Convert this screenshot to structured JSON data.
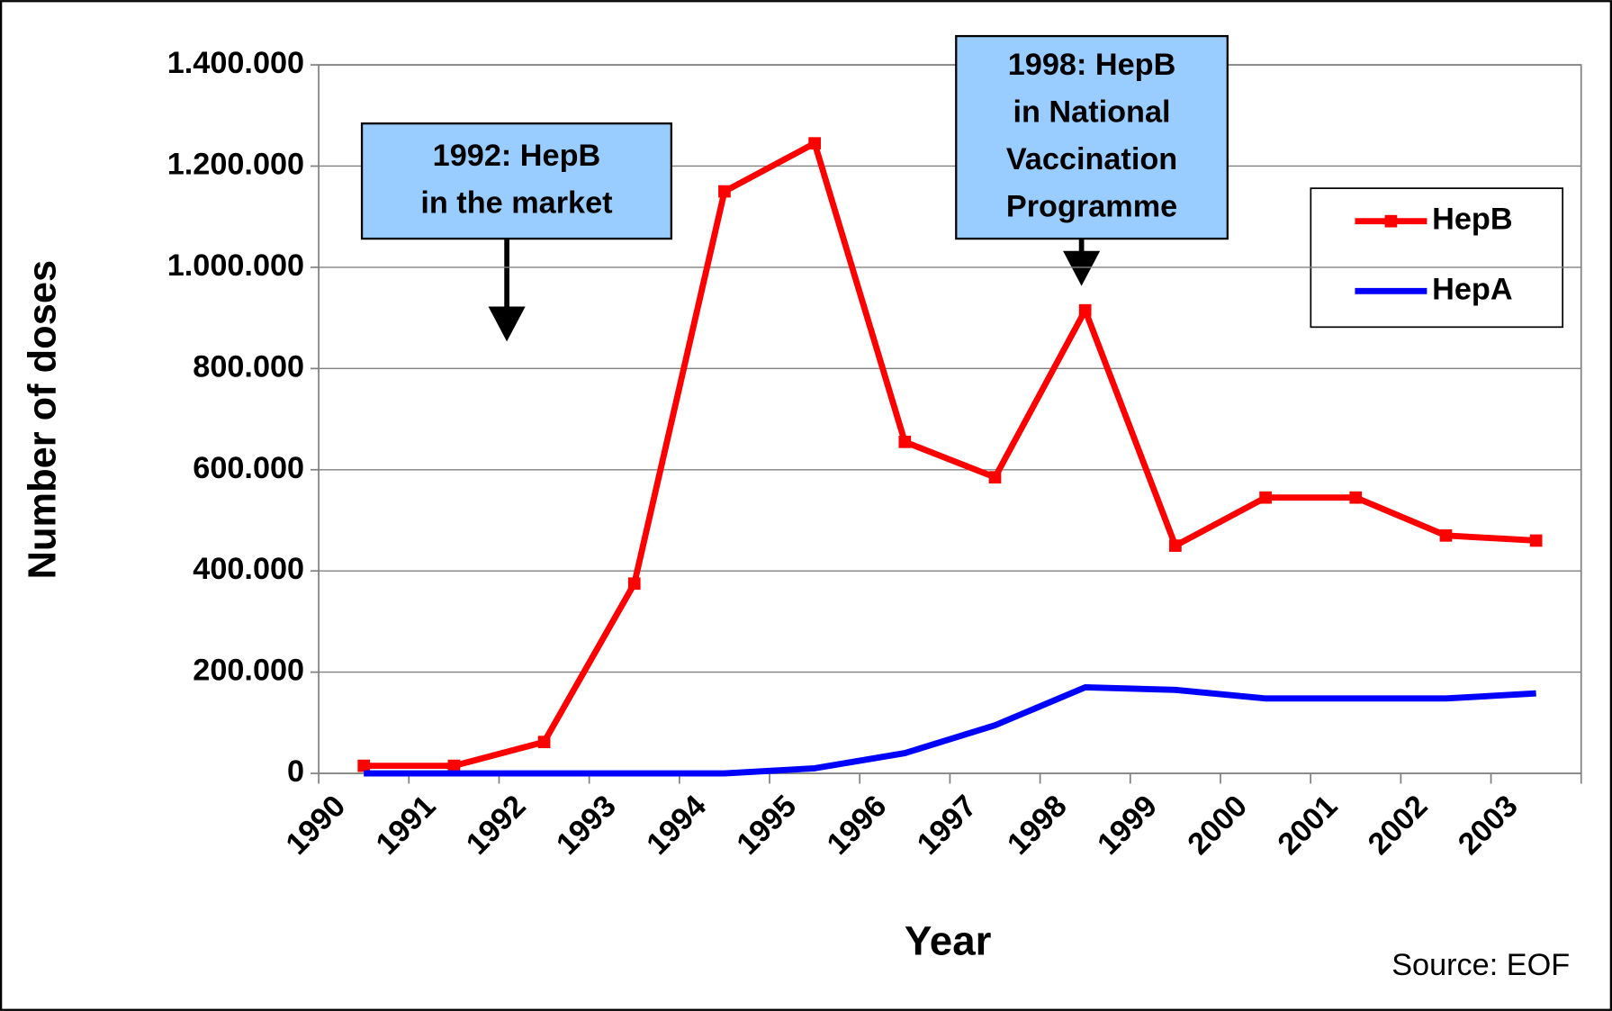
{
  "chart_data": {
    "type": "line",
    "x_label": "Year",
    "y_label": "Number of doses",
    "source": "Source: EOF",
    "categories": [
      "1990",
      "1991",
      "1992",
      "1993",
      "1994",
      "1995",
      "1996",
      "1997",
      "1998",
      "1999",
      "2000",
      "2001",
      "2002",
      "2003"
    ],
    "series": [
      {
        "name": "HepB",
        "color": "#ff0000",
        "marker": "square",
        "values": [
          15000,
          15000,
          62000,
          375000,
          1150000,
          1245000,
          655000,
          585000,
          915000,
          450000,
          545000,
          545000,
          470000,
          460000
        ]
      },
      {
        "name": "HepA",
        "color": "#0000ff",
        "values": [
          0,
          0,
          0,
          0,
          0,
          10000,
          40000,
          95000,
          170000,
          165000,
          148000,
          148000,
          148000,
          158000
        ]
      }
    ],
    "ylim": [
      0,
      1400000
    ],
    "yticks": [
      0,
      {
        "value": 200000,
        "label": "200.000"
      },
      {
        "value": 400000,
        "label": "400.000"
      },
      {
        "value": 600000,
        "label": "600.000"
      },
      {
        "value": 800000,
        "label": "800.000"
      },
      {
        "value": 1000000,
        "label": "1.000.000"
      },
      {
        "value": 1200000,
        "label": "1.200.000"
      },
      {
        "value": 1400000,
        "label": "1.400.000"
      }
    ],
    "grid": true,
    "legend": "upper right",
    "annotations": [
      {
        "lines": [
          "1992: HepB",
          "in the market"
        ]
      },
      {
        "lines": [
          "1998: HepB",
          "in National",
          "Vaccination",
          "Programme"
        ]
      }
    ]
  }
}
